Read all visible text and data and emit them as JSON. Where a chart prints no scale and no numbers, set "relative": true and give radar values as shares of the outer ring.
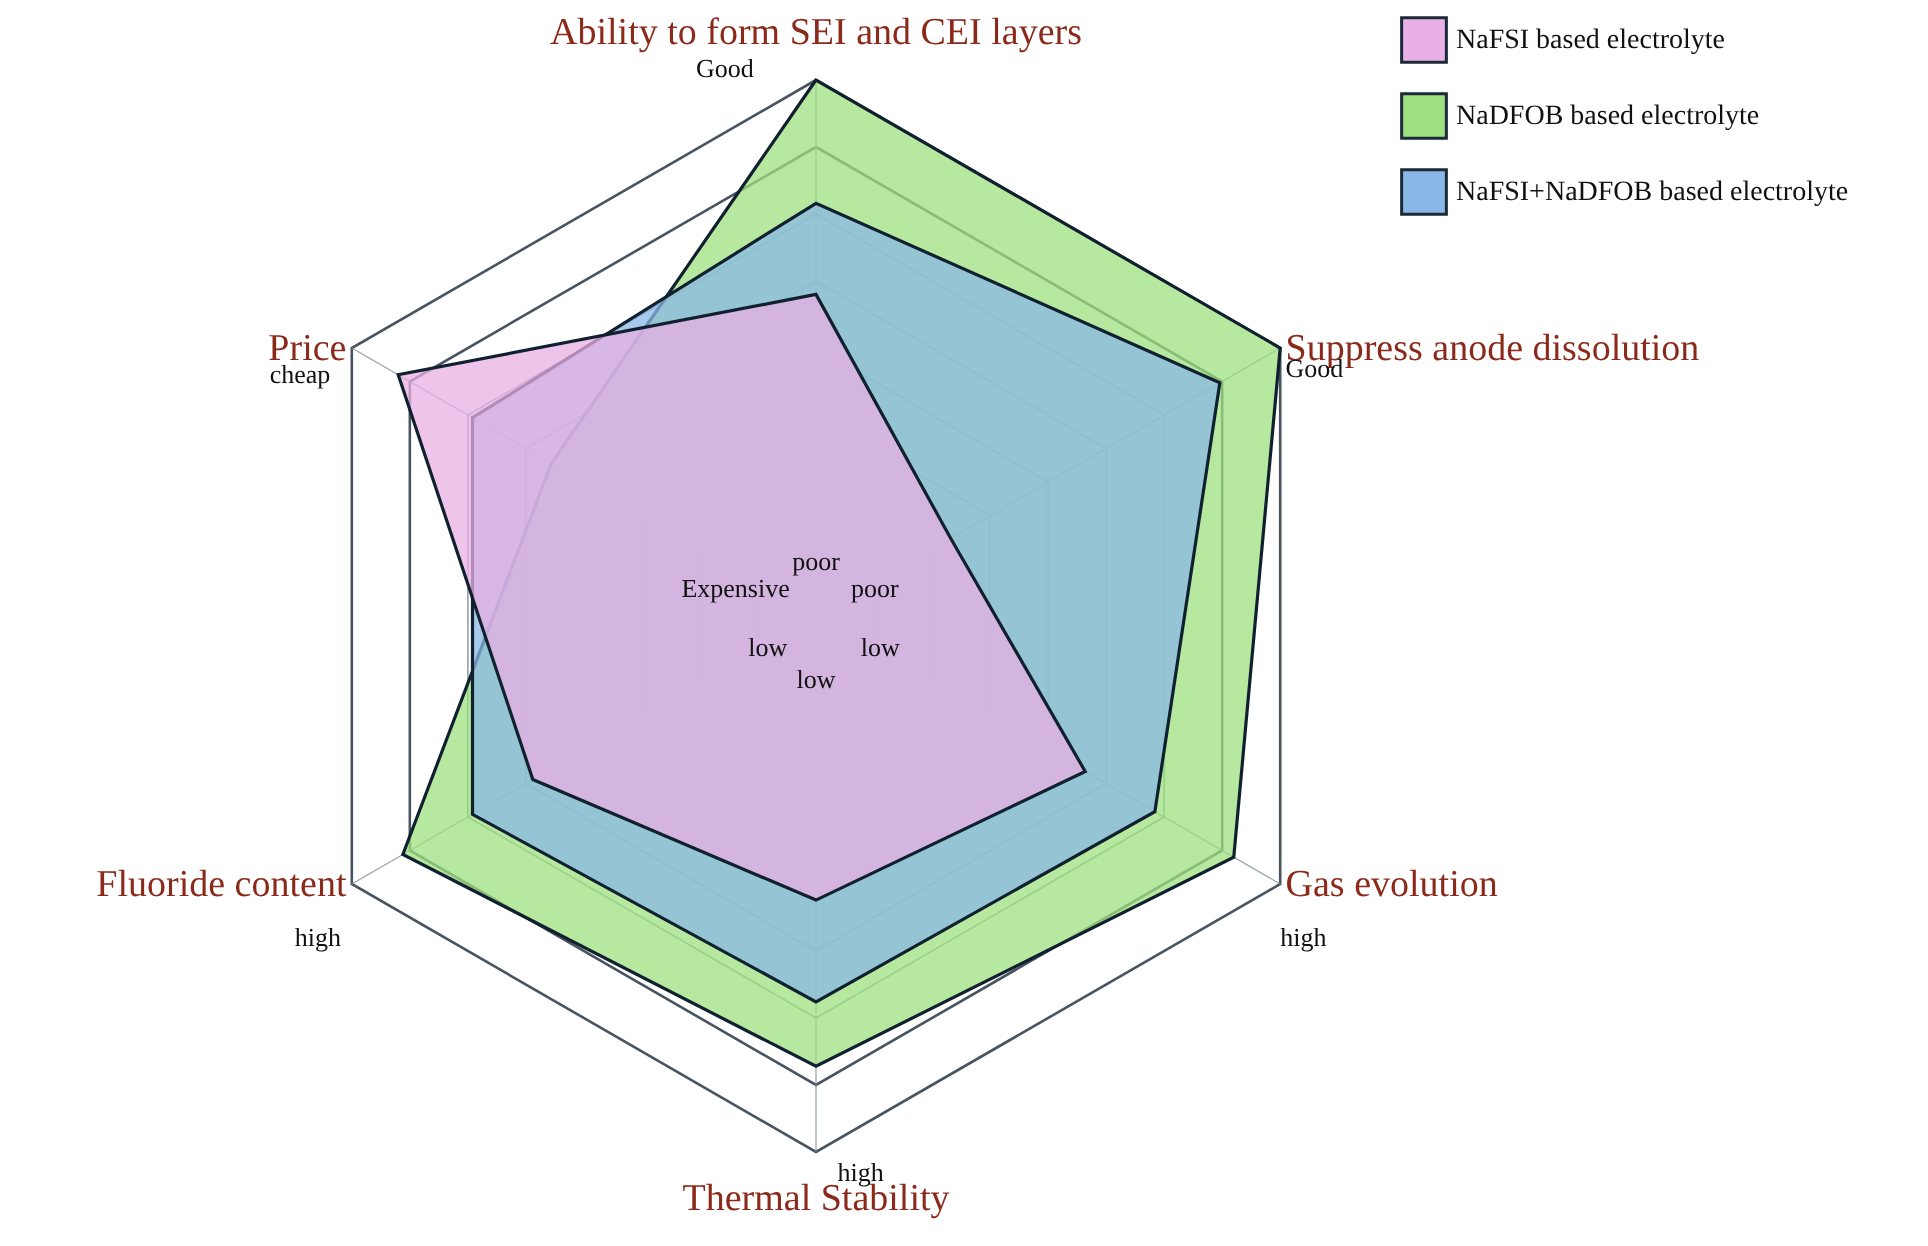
{
  "chart_data": {
    "type": "radar",
    "relative": true,
    "grid": true,
    "legend": "top right",
    "categories": [
      "Ability to form SEI and CEI layers",
      "Suppress anode dissolution",
      "Gas evolution",
      "Thermal Stability",
      "Fluoride content",
      "Price"
    ],
    "series": [
      {
        "name": "NaFSI based electrolyte",
        "color": "#e8b0e4",
        "values": [
          0.6,
          0.29,
          0.58,
          0.53,
          0.61,
          0.9
        ]
      },
      {
        "name": "NaDFOB based electrolyte",
        "color": "#9ee07f",
        "values": [
          1.0,
          1.0,
          0.9,
          0.84,
          0.89,
          0.57
        ]
      },
      {
        "name": "NaFSI+NaDFOB based electrolyte",
        "color": "#8ab8e6",
        "values": [
          0.77,
          0.87,
          0.73,
          0.72,
          0.74,
          0.74
        ]
      }
    ],
    "annotations": [
      "Good",
      "Good",
      "high",
      "high",
      "high",
      "cheap",
      "poor",
      "poor",
      "low",
      "low",
      "low",
      "Expensive"
    ]
  }
}
